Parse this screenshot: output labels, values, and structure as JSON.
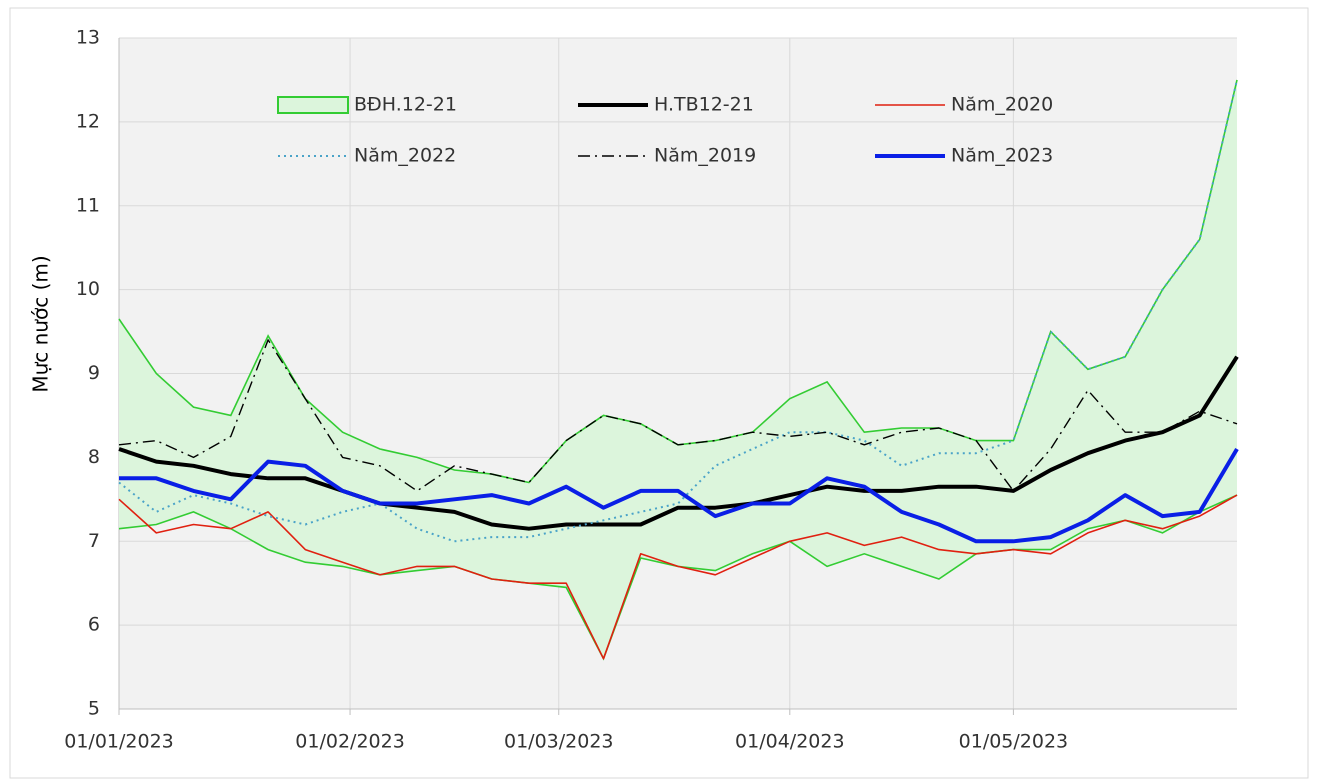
{
  "chart_data": {
    "type": "line",
    "y_label": "Mực nước (m)",
    "x": [
      "01/01/2023",
      "06/01/2023",
      "11/01/2023",
      "16/01/2023",
      "21/01/2023",
      "26/01/2023",
      "31/01/2023",
      "05/02/2023",
      "10/02/2023",
      "15/02/2023",
      "20/02/2023",
      "25/02/2023",
      "02/03/2023",
      "07/03/2023",
      "12/03/2023",
      "17/03/2023",
      "22/03/2023",
      "27/03/2023",
      "01/04/2023",
      "06/04/2023",
      "11/04/2023",
      "16/04/2023",
      "21/04/2023",
      "26/04/2023",
      "01/05/2023",
      "06/05/2023",
      "11/05/2023",
      "16/05/2023",
      "21/05/2023",
      "26/05/2023",
      "31/05/2023"
    ],
    "xlim": [
      "01/01/2023",
      "31/05/2023"
    ],
    "xticks": [
      "01/01/2023",
      "01/02/2023",
      "01/03/2023",
      "01/04/2023",
      "01/05/2023"
    ],
    "ylim": [
      5,
      13
    ],
    "yticks": [
      5,
      6,
      7,
      8,
      9,
      10,
      11,
      12,
      13
    ],
    "grid": true,
    "legend": "top",
    "band": {
      "name": "BĐH.12-21",
      "color": "#33cc33",
      "fill": "#dcf5dc",
      "upper": [
        9.65,
        9.0,
        8.6,
        8.5,
        9.45,
        8.7,
        8.3,
        8.1,
        8.0,
        7.85,
        7.8,
        7.7,
        8.2,
        8.5,
        8.4,
        8.15,
        8.2,
        8.3,
        8.7,
        8.9,
        8.3,
        8.35,
        8.35,
        8.2,
        8.2,
        9.5,
        9.05,
        9.2,
        10.0,
        10.6,
        12.5
      ],
      "lower": [
        7.15,
        7.2,
        7.35,
        7.15,
        6.9,
        6.75,
        6.7,
        6.6,
        6.65,
        6.7,
        6.55,
        6.5,
        6.45,
        5.6,
        6.8,
        6.7,
        6.65,
        6.85,
        7.0,
        6.7,
        6.85,
        6.7,
        6.55,
        6.85,
        6.9,
        6.9,
        7.15,
        7.25,
        7.1,
        7.35,
        7.55
      ]
    },
    "series": [
      {
        "name": "H.TB12-21",
        "color": "#000000",
        "width": 4,
        "dash": "solid",
        "values": [
          8.1,
          7.95,
          7.9,
          7.8,
          7.75,
          7.75,
          7.6,
          7.45,
          7.4,
          7.35,
          7.2,
          7.15,
          7.2,
          7.2,
          7.2,
          7.4,
          7.4,
          7.45,
          7.55,
          7.65,
          7.6,
          7.6,
          7.65,
          7.65,
          7.6,
          7.85,
          8.05,
          8.2,
          8.3,
          8.5,
          9.2
        ]
      },
      {
        "name": "Năm_2020",
        "color": "#e02010",
        "width": 1.6,
        "dash": "solid",
        "values": [
          7.5,
          7.1,
          7.2,
          7.15,
          7.35,
          6.9,
          6.75,
          6.6,
          6.7,
          6.7,
          6.55,
          6.5,
          6.5,
          5.6,
          6.85,
          6.7,
          6.6,
          6.8,
          7.0,
          7.1,
          6.95,
          7.05,
          6.9,
          6.85,
          6.9,
          6.85,
          7.1,
          7.25,
          7.15,
          7.3,
          7.55
        ]
      },
      {
        "name": "Năm_2022",
        "color": "#4aa3c8",
        "width": 2,
        "dash": "dotted",
        "values": [
          7.7,
          7.35,
          7.55,
          7.45,
          7.3,
          7.2,
          7.35,
          7.45,
          7.15,
          7.0,
          7.05,
          7.05,
          7.15,
          7.25,
          7.35,
          7.45,
          7.9,
          8.1,
          8.3,
          8.3,
          8.2,
          7.9,
          8.05,
          8.05,
          8.2,
          9.5,
          9.05,
          9.2,
          10.0,
          10.6,
          12.5
        ]
      },
      {
        "name": "Năm_2019",
        "color": "#000000",
        "width": 1.4,
        "dash": "dashdot",
        "values": [
          8.15,
          8.2,
          8.0,
          8.25,
          9.4,
          8.7,
          8.0,
          7.9,
          7.6,
          7.9,
          7.8,
          7.7,
          8.2,
          8.5,
          8.4,
          8.15,
          8.2,
          8.3,
          8.25,
          8.3,
          8.15,
          8.3,
          8.35,
          8.2,
          7.6,
          8.1,
          8.8,
          8.3,
          8.3,
          8.55,
          8.4
        ]
      },
      {
        "name": "Năm_2023",
        "color": "#0a1fe6",
        "width": 4,
        "dash": "solid",
        "values": [
          7.75,
          7.75,
          7.6,
          7.5,
          7.95,
          7.9,
          7.6,
          7.45,
          7.45,
          7.5,
          7.55,
          7.45,
          7.65,
          7.4,
          7.6,
          7.6,
          7.3,
          7.45,
          7.45,
          7.75,
          7.65,
          7.35,
          7.2,
          7.0,
          7.0,
          7.05,
          7.25,
          7.55,
          7.3,
          7.35,
          8.1
        ]
      }
    ]
  }
}
